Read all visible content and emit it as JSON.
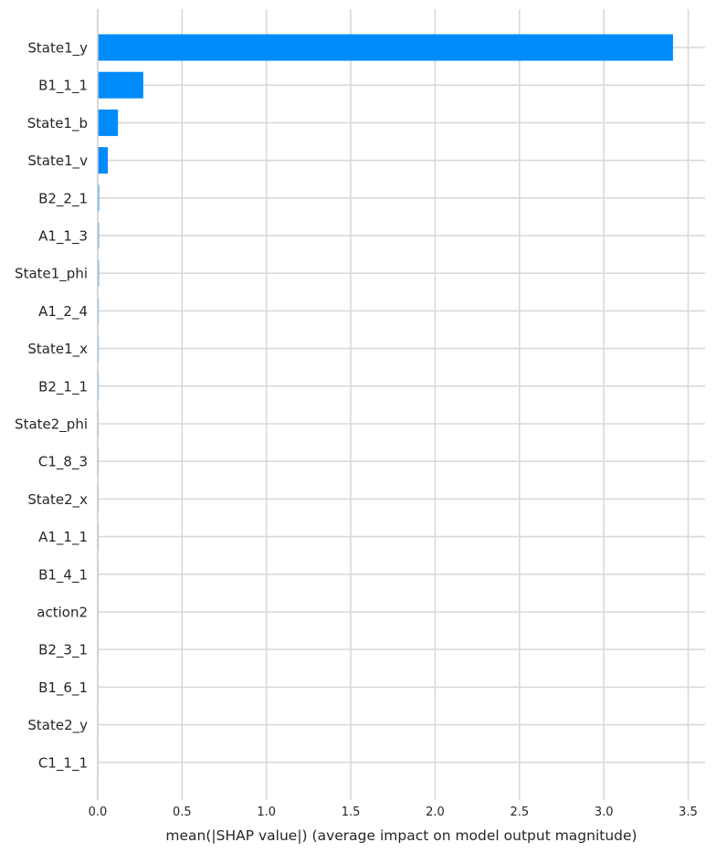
{
  "chart_data": {
    "type": "bar",
    "orientation": "horizontal",
    "title": "",
    "xlabel": "mean(|SHAP value|) (average impact on model output magnitude)",
    "ylabel": "",
    "xlim": [
      0,
      3.6
    ],
    "xticks": [
      "0.0",
      "0.5",
      "1.0",
      "1.5",
      "2.0",
      "2.5",
      "3.0",
      "3.5"
    ],
    "xtick_values": [
      0,
      0.5,
      1.0,
      1.5,
      2.0,
      2.5,
      3.0,
      3.5
    ],
    "grid": true,
    "bar_color": "#008bfb",
    "categories": [
      "State1_y",
      "B1_1_1",
      "State1_b",
      "State1_v",
      "B2_2_1",
      "A1_1_3",
      "State1_phi",
      "A1_2_4",
      "State1_x",
      "B2_1_1",
      "State2_phi",
      "C1_8_3",
      "State2_x",
      "A1_1_1",
      "B1_4_1",
      "action2",
      "B2_3_1",
      "B1_6_1",
      "State2_y",
      "C1_1_1"
    ],
    "values": [
      3.41,
      0.27,
      0.12,
      0.06,
      0.008,
      0.007,
      0.007,
      0.006,
      0.006,
      0.006,
      0.005,
      0.005,
      0.005,
      0.005,
      0.004,
      0.004,
      0.004,
      0.002,
      0.001,
      0.001
    ]
  }
}
